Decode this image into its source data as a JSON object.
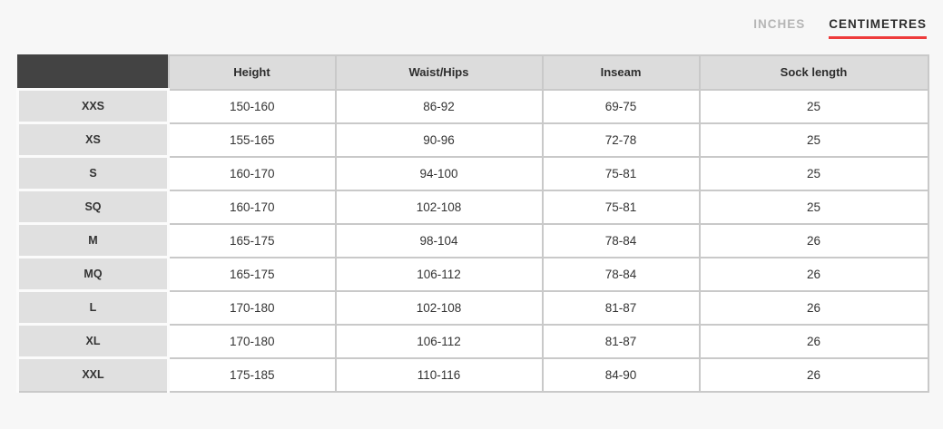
{
  "page": {
    "background": "#f7f7f7"
  },
  "unit_toggle": {
    "inches_label": "INCHES",
    "centimetres_label": "CENTIMETRES",
    "active": "CENTIMETRES",
    "accent_color": "#ee3b3b"
  },
  "size_chart": {
    "columns": [
      "Height",
      "Waist/Hips",
      "Inseam",
      "Sock length"
    ],
    "rows": [
      {
        "size": "XXS",
        "height": "150-160",
        "waist_hips": "86-92",
        "inseam": "69-75",
        "sock_length": "25"
      },
      {
        "size": "XS",
        "height": "155-165",
        "waist_hips": "90-96",
        "inseam": "72-78",
        "sock_length": "25"
      },
      {
        "size": "S",
        "height": "160-170",
        "waist_hips": "94-100",
        "inseam": "75-81",
        "sock_length": "25"
      },
      {
        "size": "SQ",
        "height": "160-170",
        "waist_hips": "102-108",
        "inseam": "75-81",
        "sock_length": "25"
      },
      {
        "size": "M",
        "height": "165-175",
        "waist_hips": "98-104",
        "inseam": "78-84",
        "sock_length": "26"
      },
      {
        "size": "MQ",
        "height": "165-175",
        "waist_hips": "106-112",
        "inseam": "78-84",
        "sock_length": "26"
      },
      {
        "size": "L",
        "height": "170-180",
        "waist_hips": "102-108",
        "inseam": "81-87",
        "sock_length": "26"
      },
      {
        "size": "XL",
        "height": "170-180",
        "waist_hips": "106-112",
        "inseam": "81-87",
        "sock_length": "26"
      },
      {
        "size": "XXL",
        "height": "175-185",
        "waist_hips": "110-116",
        "inseam": "84-90",
        "sock_length": "26"
      }
    ],
    "colors": {
      "corner_header_bg": "#434343",
      "column_header_bg": "#dcdcdc",
      "row_label_bg": "#e0e0e0",
      "grid_line": "#c9c9c9"
    }
  }
}
